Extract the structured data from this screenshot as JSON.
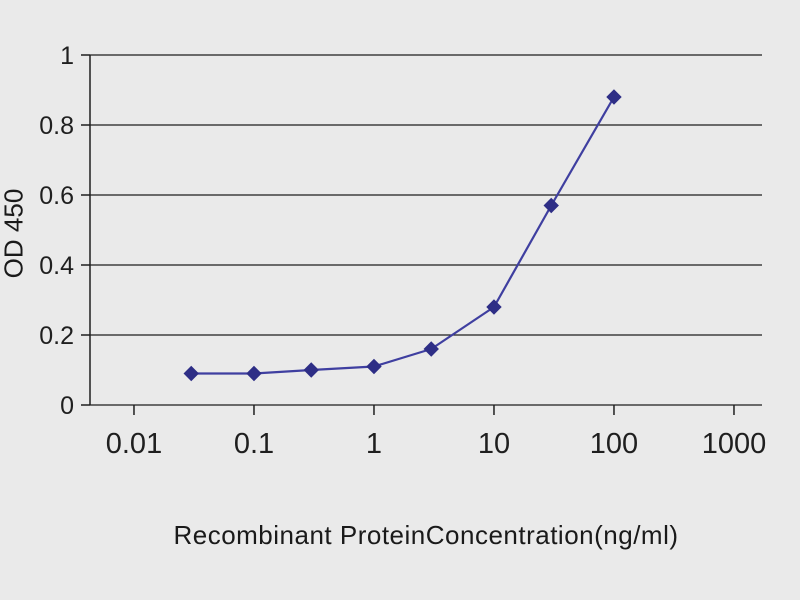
{
  "page": {
    "background": "#eaeaea"
  },
  "chart_data": {
    "type": "line",
    "title": "",
    "xlabel": "Recombinant ProteinConcentration(ng/ml)",
    "ylabel": "OD 450",
    "x_scale": "log",
    "x": [
      0.03,
      0.1,
      0.3,
      1,
      3,
      10,
      30,
      100
    ],
    "y": [
      0.09,
      0.09,
      0.1,
      0.11,
      0.16,
      0.28,
      0.57,
      0.88
    ],
    "xlim": [
      0.0043,
      1712
    ],
    "ylim": [
      0,
      1
    ],
    "x_ticks": [
      0.01,
      0.1,
      1,
      10,
      100,
      1000
    ],
    "x_tick_labels": [
      "0.01",
      "0.1",
      "1",
      "10",
      "100",
      "1000"
    ],
    "y_ticks": [
      0,
      0.2,
      0.4,
      0.6,
      0.8,
      1
    ],
    "y_tick_labels": [
      "0",
      "0.2",
      "0.4",
      "0.6",
      "0.8",
      "1"
    ],
    "grid": "horizontal",
    "legend": "none",
    "line_color": "#3f3fa0",
    "marker": "diamond",
    "marker_color": "#2e2e86",
    "axis_color": "#1f1f1f",
    "tick_font_size_x": 29,
    "tick_font_size_y": 25
  }
}
